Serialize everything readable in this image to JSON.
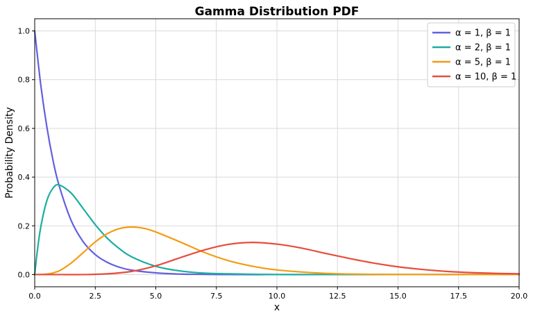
{
  "chart_data": {
    "type": "line",
    "title": "Gamma Distribution PDF",
    "xlabel": "x",
    "ylabel": "Probability Density",
    "xlim": [
      0,
      20
    ],
    "ylim": [
      -0.05,
      1.05
    ],
    "xticks": [
      0.0,
      2.5,
      5.0,
      7.5,
      10.0,
      12.5,
      15.0,
      17.5,
      20.0
    ],
    "xtick_labels": [
      "0.0",
      "2.5",
      "5.0",
      "7.5",
      "10.0",
      "12.5",
      "15.0",
      "17.5",
      "20.0"
    ],
    "yticks": [
      0.0,
      0.2,
      0.4,
      0.6,
      0.8,
      1.0
    ],
    "ytick_labels": [
      "0.0",
      "0.2",
      "0.4",
      "0.6",
      "0.8",
      "1.0"
    ],
    "grid": true,
    "legend_position": "top-right",
    "series": [
      {
        "name": "α = 1, β = 1",
        "color": "#6060e0",
        "x": [
          0,
          0.25,
          0.5,
          0.75,
          1,
          1.5,
          2,
          2.5,
          3,
          3.5,
          4,
          5,
          6,
          7,
          8,
          10,
          12,
          15,
          20
        ],
        "y": [
          1.0,
          0.779,
          0.607,
          0.472,
          0.368,
          0.223,
          0.135,
          0.082,
          0.05,
          0.03,
          0.018,
          0.007,
          0.002,
          0.001,
          0.0,
          0.0,
          0.0,
          0.0,
          0.0
        ]
      },
      {
        "name": "α = 2, β = 1",
        "color": "#1aae9f",
        "x": [
          0,
          0.1,
          0.25,
          0.5,
          0.75,
          1,
          1.5,
          2,
          2.5,
          3,
          3.5,
          4,
          5,
          6,
          7,
          8,
          10,
          12,
          15,
          20
        ],
        "y": [
          0.0,
          0.09,
          0.195,
          0.303,
          0.354,
          0.368,
          0.335,
          0.271,
          0.205,
          0.149,
          0.106,
          0.073,
          0.034,
          0.015,
          0.006,
          0.003,
          0.0,
          0.0,
          0.0,
          0.0
        ]
      },
      {
        "name": "α = 5, β = 1",
        "color": "#f39c12",
        "x": [
          0,
          0.5,
          1,
          1.5,
          2,
          2.5,
          3,
          3.5,
          4,
          4.5,
          5,
          6,
          7,
          8,
          9,
          10,
          12,
          14,
          16,
          18,
          20
        ],
        "y": [
          0.0,
          0.002,
          0.015,
          0.047,
          0.09,
          0.134,
          0.168,
          0.189,
          0.195,
          0.19,
          0.175,
          0.134,
          0.091,
          0.057,
          0.034,
          0.019,
          0.005,
          0.001,
          0.0,
          0.0,
          0.0
        ]
      },
      {
        "name": "α = 10, β = 1",
        "color": "#e74c3c",
        "x": [
          0,
          1,
          2,
          3,
          4,
          5,
          6,
          7,
          8,
          9,
          10,
          11,
          12,
          13,
          14,
          15,
          16,
          17,
          18,
          19,
          20
        ],
        "y": [
          0.0,
          0.0,
          0.0,
          0.003,
          0.013,
          0.036,
          0.069,
          0.101,
          0.124,
          0.132,
          0.125,
          0.109,
          0.087,
          0.066,
          0.047,
          0.032,
          0.021,
          0.013,
          0.008,
          0.005,
          0.003
        ]
      }
    ]
  }
}
